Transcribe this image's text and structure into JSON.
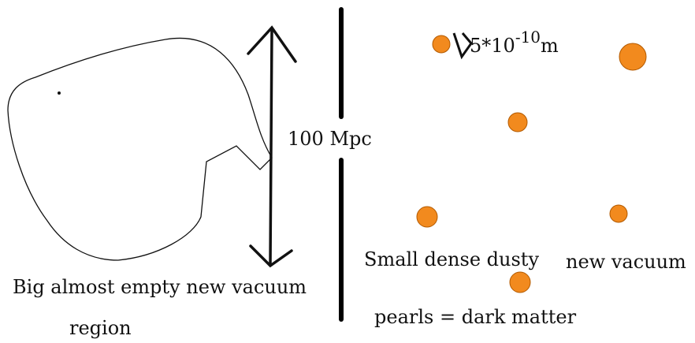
{
  "scale_label": {
    "text": "100 Mpc"
  },
  "pearl_size": {
    "base": "5*10",
    "exponent": "-10",
    "unit": "m"
  },
  "left_caption": {
    "line1": "Big almost empty new vacuum",
    "line2": "region"
  },
  "right_caption": {
    "line1a": "Small dense dusty",
    "line1b": "new vacuum",
    "line2": "pearls = dark matter"
  }
}
